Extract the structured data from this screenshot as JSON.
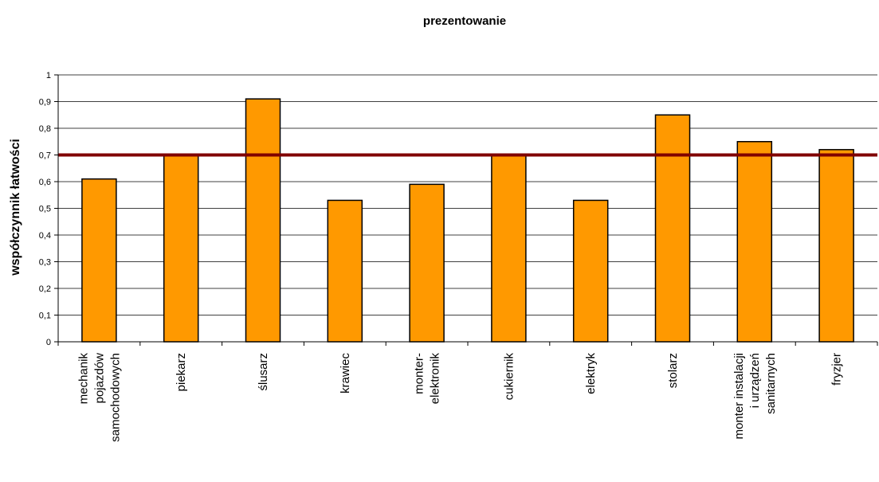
{
  "chart_data": {
    "type": "bar",
    "title": "prezentowanie",
    "ylabel": "współczynnik łatwości",
    "xlabel": "",
    "ylim": [
      0,
      1
    ],
    "yticks": [
      "0",
      "0,1",
      "0,2",
      "0,3",
      "0,4",
      "0,5",
      "0,6",
      "0,7",
      "0,8",
      "0,9",
      "1"
    ],
    "grid": true,
    "categories": [
      [
        "mechanik",
        "pojazdów",
        "samochodowych"
      ],
      [
        "piekarz"
      ],
      [
        "ślusarz"
      ],
      [
        "krawiec"
      ],
      [
        "monter-",
        "elektronik"
      ],
      [
        "cukiernik"
      ],
      [
        "elektryk"
      ],
      [
        "stolarz"
      ],
      [
        "monter instalacji",
        "i urządzeń",
        "sanitarnych"
      ],
      [
        "fryzjer"
      ]
    ],
    "values": [
      0.61,
      0.7,
      0.91,
      0.53,
      0.59,
      0.7,
      0.53,
      0.85,
      0.75,
      0.72
    ],
    "reference_line": 0.7,
    "colors": {
      "bar_fill": "#FF9900",
      "bar_stroke": "#000000",
      "reference_line": "#800000",
      "grid": "#000000"
    }
  }
}
